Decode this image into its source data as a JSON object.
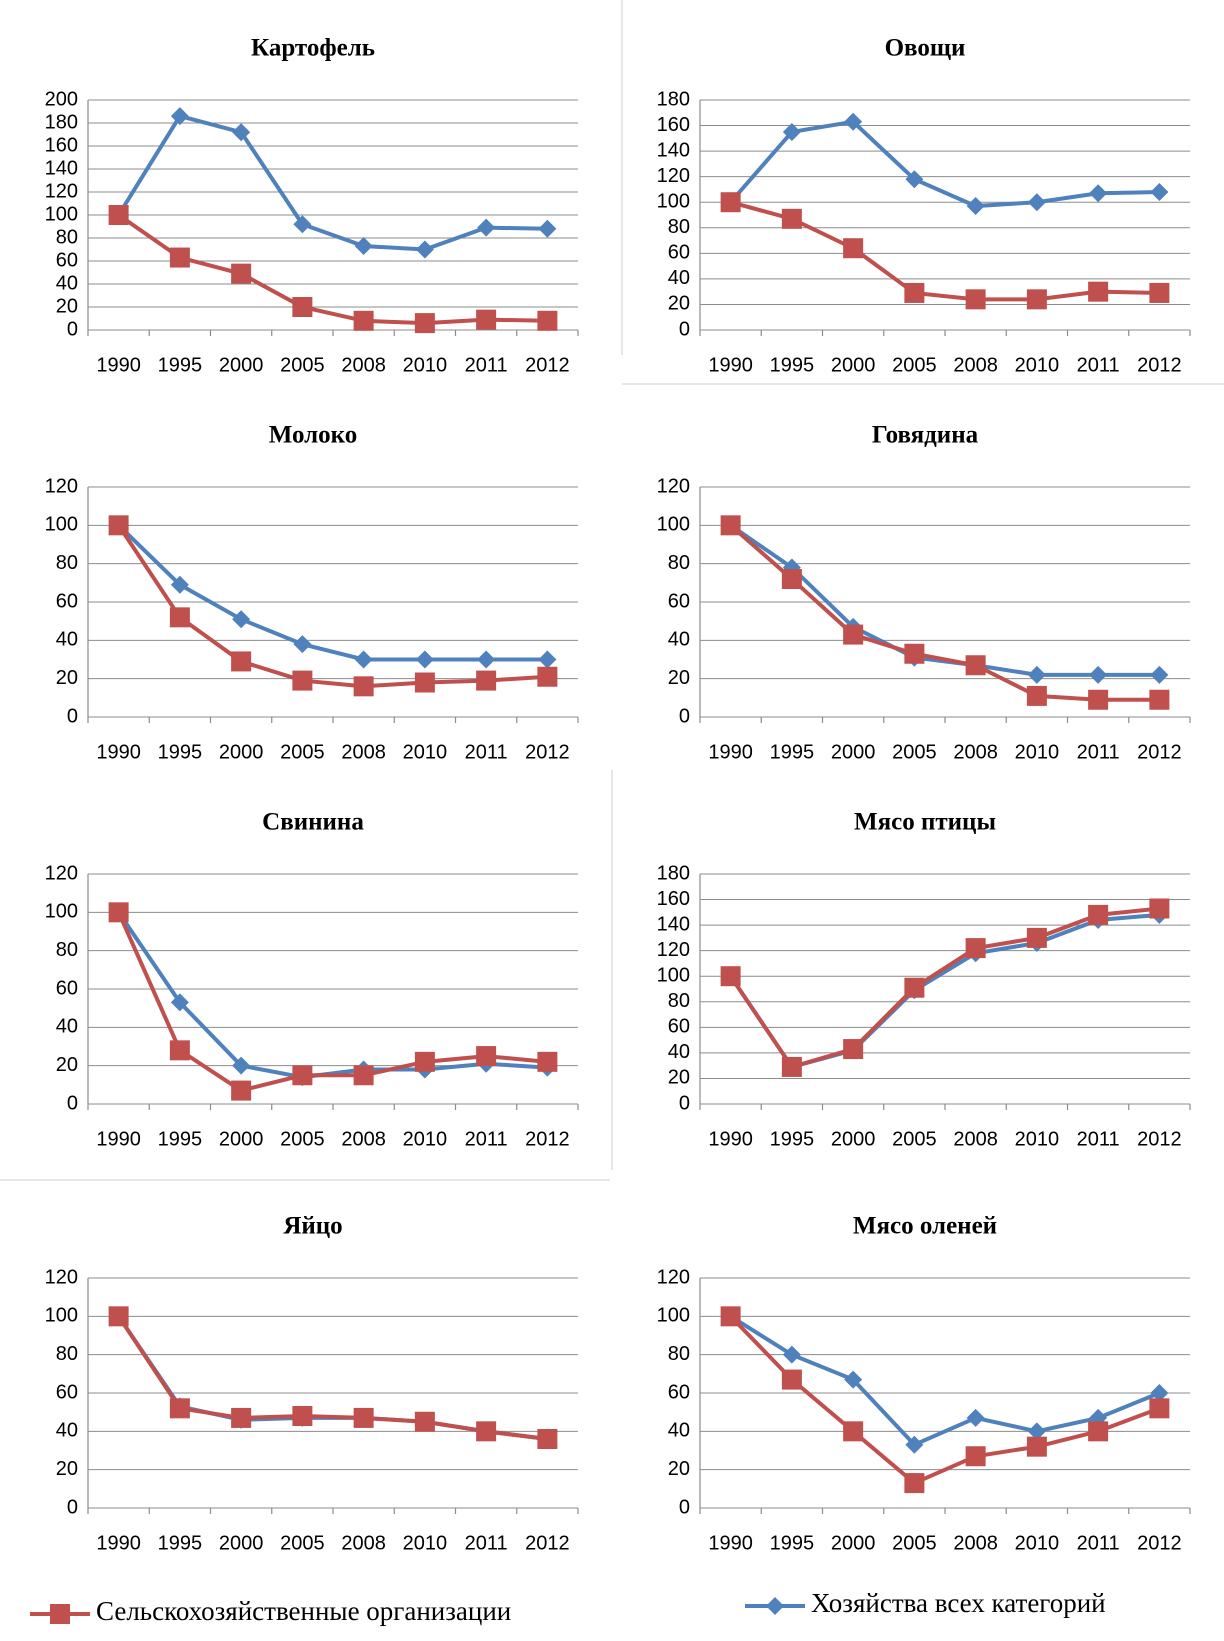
{
  "chart_data": [
    {
      "type": "line",
      "title": "Картофель",
      "categories": [
        "1990",
        "1995",
        "2000",
        "2005",
        "2008",
        "2010",
        "2011",
        "2012"
      ],
      "ylim": [
        0,
        200
      ],
      "yticks": [
        0,
        20,
        40,
        60,
        80,
        100,
        120,
        140,
        160,
        180,
        200
      ],
      "grid": true,
      "series": [
        {
          "values": [
            100,
            63,
            49,
            20,
            8,
            6,
            9,
            8
          ]
        },
        {
          "values": [
            100,
            186,
            172,
            92,
            73,
            70,
            89,
            88
          ]
        }
      ]
    },
    {
      "type": "line",
      "title": "Овощи",
      "categories": [
        "1990",
        "1995",
        "2000",
        "2005",
        "2008",
        "2010",
        "2011",
        "2012"
      ],
      "ylim": [
        0,
        180
      ],
      "yticks": [
        0,
        20,
        40,
        60,
        80,
        100,
        120,
        140,
        160,
        180
      ],
      "grid": true,
      "series": [
        {
          "values": [
            100,
            87,
            64,
            29,
            24,
            24,
            30,
            29
          ]
        },
        {
          "values": [
            100,
            155,
            163,
            118,
            97,
            100,
            107,
            108
          ]
        }
      ]
    },
    {
      "type": "line",
      "title": "Молоко",
      "categories": [
        "1990",
        "1995",
        "2000",
        "2005",
        "2008",
        "2010",
        "2011",
        "2012"
      ],
      "ylim": [
        0,
        120
      ],
      "yticks": [
        0,
        20,
        40,
        60,
        80,
        100,
        120
      ],
      "grid": true,
      "series": [
        {
          "values": [
            100,
            52,
            29,
            19,
            16,
            18,
            19,
            21
          ]
        },
        {
          "values": [
            100,
            69,
            51,
            38,
            30,
            30,
            30,
            30
          ]
        }
      ]
    },
    {
      "type": "line",
      "title": "Говядина",
      "categories": [
        "1990",
        "1995",
        "2000",
        "2005",
        "2008",
        "2010",
        "2011",
        "2012"
      ],
      "ylim": [
        0,
        120
      ],
      "yticks": [
        0,
        20,
        40,
        60,
        80,
        100,
        120
      ],
      "grid": true,
      "series": [
        {
          "values": [
            100,
            72,
            43,
            33,
            27,
            11,
            9,
            9
          ]
        },
        {
          "values": [
            100,
            78,
            47,
            31,
            27,
            22,
            22,
            22
          ]
        }
      ]
    },
    {
      "type": "line",
      "title": "Свинина",
      "categories": [
        "1990",
        "1995",
        "2000",
        "2005",
        "2008",
        "2010",
        "2011",
        "2012"
      ],
      "ylim": [
        0,
        120
      ],
      "yticks": [
        0,
        20,
        40,
        60,
        80,
        100,
        120
      ],
      "grid": true,
      "series": [
        {
          "values": [
            100,
            28,
            7,
            15,
            15,
            22,
            25,
            22
          ]
        },
        {
          "values": [
            100,
            53,
            20,
            14,
            18,
            18,
            21,
            19
          ]
        }
      ]
    },
    {
      "type": "line",
      "title": "Мясо птицы",
      "categories": [
        "1990",
        "1995",
        "2000",
        "2005",
        "2008",
        "2010",
        "2011",
        "2012"
      ],
      "ylim": [
        0,
        180
      ],
      "yticks": [
        0,
        20,
        40,
        60,
        80,
        100,
        120,
        140,
        160,
        180
      ],
      "grid": true,
      "series": [
        {
          "values": [
            100,
            29,
            43,
            91,
            122,
            130,
            148,
            153
          ]
        },
        {
          "values": [
            100,
            29,
            42,
            89,
            118,
            126,
            144,
            148
          ]
        }
      ]
    },
    {
      "type": "line",
      "title": "Яйцо",
      "categories": [
        "1990",
        "1995",
        "2000",
        "2005",
        "2008",
        "2010",
        "2011",
        "2012"
      ],
      "ylim": [
        0,
        120
      ],
      "yticks": [
        0,
        20,
        40,
        60,
        80,
        100,
        120
      ],
      "grid": true,
      "series": [
        {
          "values": [
            100,
            52,
            47,
            48,
            47,
            45,
            40,
            36
          ]
        },
        {
          "values": [
            100,
            53,
            46,
            47,
            47,
            45,
            40,
            36
          ]
        }
      ]
    },
    {
      "type": "line",
      "title": "Мясо оленей",
      "categories": [
        "1990",
        "1995",
        "2000",
        "2005",
        "2008",
        "2010",
        "2011",
        "2012"
      ],
      "ylim": [
        0,
        120
      ],
      "yticks": [
        0,
        20,
        40,
        60,
        80,
        100,
        120
      ],
      "grid": true,
      "series": [
        {
          "values": [
            100,
            67,
            40,
            13,
            27,
            32,
            40,
            52
          ]
        },
        {
          "values": [
            100,
            80,
            67,
            33,
            47,
            40,
            47,
            60
          ]
        }
      ]
    }
  ],
  "legend": [
    {
      "name": "Сельскохозяйственные организации",
      "color": "#c0504d",
      "marker": "square"
    },
    {
      "name": "Хозяйства всех категорий",
      "color": "#4f81bd",
      "marker": "diamond"
    }
  ]
}
